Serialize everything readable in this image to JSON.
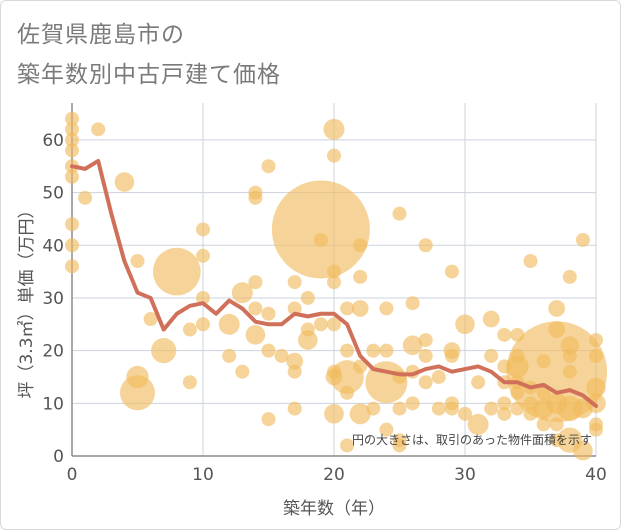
{
  "title_lines": [
    "佐賀県鹿島市の",
    "築年数別中古戸建て価格"
  ],
  "chart_data": {
    "type": "scatter",
    "xlabel": "築年数（年）",
    "ylabel": "坪（3.3㎡）単価（万円）",
    "xlim": [
      0,
      40
    ],
    "ylim": [
      0,
      67
    ],
    "xticks": [
      0,
      10,
      20,
      30,
      40
    ],
    "yticks": [
      0,
      10,
      20,
      30,
      40,
      50,
      60
    ],
    "grid": true,
    "note": "円の大きさは、取引のあった物件面積を示す",
    "bubble_color": "#f0b95a",
    "line_color": "#d0705a",
    "points": [
      {
        "x": 0,
        "y": 64,
        "s": 1
      },
      {
        "x": 0,
        "y": 62,
        "s": 1
      },
      {
        "x": 0,
        "y": 60,
        "s": 1
      },
      {
        "x": 0,
        "y": 58,
        "s": 1
      },
      {
        "x": 0,
        "y": 55,
        "s": 1
      },
      {
        "x": 0,
        "y": 53,
        "s": 1
      },
      {
        "x": 0,
        "y": 44,
        "s": 1
      },
      {
        "x": 0,
        "y": 40,
        "s": 1
      },
      {
        "x": 0,
        "y": 36,
        "s": 1
      },
      {
        "x": 1,
        "y": 49,
        "s": 1
      },
      {
        "x": 2,
        "y": 62,
        "s": 1
      },
      {
        "x": 4,
        "y": 52,
        "s": 1.4
      },
      {
        "x": 5,
        "y": 37,
        "s": 1
      },
      {
        "x": 5,
        "y": 15,
        "s": 1.6
      },
      {
        "x": 5,
        "y": 12,
        "s": 2.5
      },
      {
        "x": 6,
        "y": 26,
        "s": 1
      },
      {
        "x": 7,
        "y": 20,
        "s": 1.8
      },
      {
        "x": 8,
        "y": 35,
        "s": 3.4
      },
      {
        "x": 9,
        "y": 24,
        "s": 1
      },
      {
        "x": 9,
        "y": 14,
        "s": 1
      },
      {
        "x": 10,
        "y": 43,
        "s": 1
      },
      {
        "x": 10,
        "y": 38,
        "s": 1
      },
      {
        "x": 10,
        "y": 30,
        "s": 1
      },
      {
        "x": 10,
        "y": 25,
        "s": 1
      },
      {
        "x": 12,
        "y": 25,
        "s": 1.5
      },
      {
        "x": 12,
        "y": 19,
        "s": 1
      },
      {
        "x": 13,
        "y": 31,
        "s": 1.5
      },
      {
        "x": 13,
        "y": 16,
        "s": 1
      },
      {
        "x": 14,
        "y": 50,
        "s": 1
      },
      {
        "x": 14,
        "y": 49,
        "s": 1
      },
      {
        "x": 14,
        "y": 33,
        "s": 1
      },
      {
        "x": 14,
        "y": 28,
        "s": 1
      },
      {
        "x": 14,
        "y": 23,
        "s": 1.4
      },
      {
        "x": 15,
        "y": 55,
        "s": 1
      },
      {
        "x": 15,
        "y": 27,
        "s": 1
      },
      {
        "x": 15,
        "y": 20,
        "s": 1
      },
      {
        "x": 15,
        "y": 7,
        "s": 1
      },
      {
        "x": 16,
        "y": 19,
        "s": 1
      },
      {
        "x": 17,
        "y": 33,
        "s": 1
      },
      {
        "x": 17,
        "y": 28,
        "s": 1
      },
      {
        "x": 17,
        "y": 18,
        "s": 1.2
      },
      {
        "x": 17,
        "y": 16,
        "s": 1
      },
      {
        "x": 17,
        "y": 9,
        "s": 1
      },
      {
        "x": 18,
        "y": 30,
        "s": 1
      },
      {
        "x": 18,
        "y": 24,
        "s": 1
      },
      {
        "x": 18,
        "y": 22,
        "s": 1.4
      },
      {
        "x": 19,
        "y": 43,
        "s": 7
      },
      {
        "x": 19,
        "y": 41,
        "s": 1
      },
      {
        "x": 19,
        "y": 25,
        "s": 1
      },
      {
        "x": 20,
        "y": 62,
        "s": 1.5
      },
      {
        "x": 20,
        "y": 57,
        "s": 1
      },
      {
        "x": 20,
        "y": 35,
        "s": 1
      },
      {
        "x": 20,
        "y": 33,
        "s": 1
      },
      {
        "x": 20,
        "y": 25,
        "s": 1
      },
      {
        "x": 20,
        "y": 16,
        "s": 1
      },
      {
        "x": 20,
        "y": 15,
        "s": 1.2
      },
      {
        "x": 20,
        "y": 8,
        "s": 1.4
      },
      {
        "x": 21,
        "y": 28,
        "s": 1
      },
      {
        "x": 21,
        "y": 20,
        "s": 1
      },
      {
        "x": 21,
        "y": 15,
        "s": 2.4
      },
      {
        "x": 21,
        "y": 12,
        "s": 1
      },
      {
        "x": 21,
        "y": 2,
        "s": 1
      },
      {
        "x": 22,
        "y": 40,
        "s": 1
      },
      {
        "x": 22,
        "y": 34,
        "s": 1
      },
      {
        "x": 22,
        "y": 28,
        "s": 1.2
      },
      {
        "x": 22,
        "y": 17,
        "s": 1
      },
      {
        "x": 22,
        "y": 8,
        "s": 1.5
      },
      {
        "x": 23,
        "y": 20,
        "s": 1
      },
      {
        "x": 23,
        "y": 9,
        "s": 1
      },
      {
        "x": 24,
        "y": 28,
        "s": 1
      },
      {
        "x": 24,
        "y": 20,
        "s": 1
      },
      {
        "x": 24,
        "y": 14,
        "s": 3
      },
      {
        "x": 24,
        "y": 5,
        "s": 1
      },
      {
        "x": 25,
        "y": 46,
        "s": 1
      },
      {
        "x": 25,
        "y": 15,
        "s": 1
      },
      {
        "x": 25,
        "y": 9,
        "s": 1
      },
      {
        "x": 25,
        "y": 3,
        "s": 1
      },
      {
        "x": 25,
        "y": 2,
        "s": 1
      },
      {
        "x": 26,
        "y": 29,
        "s": 1
      },
      {
        "x": 26,
        "y": 21,
        "s": 1.4
      },
      {
        "x": 26,
        "y": 16,
        "s": 1
      },
      {
        "x": 26,
        "y": 10,
        "s": 1
      },
      {
        "x": 27,
        "y": 40,
        "s": 1
      },
      {
        "x": 27,
        "y": 22,
        "s": 1
      },
      {
        "x": 27,
        "y": 19,
        "s": 1
      },
      {
        "x": 27,
        "y": 14,
        "s": 1
      },
      {
        "x": 28,
        "y": 15,
        "s": 1
      },
      {
        "x": 28,
        "y": 9,
        "s": 1
      },
      {
        "x": 29,
        "y": 35,
        "s": 1
      },
      {
        "x": 29,
        "y": 20,
        "s": 1.2
      },
      {
        "x": 29,
        "y": 19,
        "s": 1
      },
      {
        "x": 29,
        "y": 10,
        "s": 1
      },
      {
        "x": 29,
        "y": 9,
        "s": 1
      },
      {
        "x": 30,
        "y": 25,
        "s": 1.4
      },
      {
        "x": 30,
        "y": 8,
        "s": 1
      },
      {
        "x": 31,
        "y": 14,
        "s": 1
      },
      {
        "x": 31,
        "y": 6,
        "s": 1.5
      },
      {
        "x": 32,
        "y": 26,
        "s": 1.2
      },
      {
        "x": 32,
        "y": 19,
        "s": 1
      },
      {
        "x": 32,
        "y": 9,
        "s": 1
      },
      {
        "x": 33,
        "y": 23,
        "s": 1
      },
      {
        "x": 33,
        "y": 17,
        "s": 1
      },
      {
        "x": 33,
        "y": 14,
        "s": 1
      },
      {
        "x": 33,
        "y": 10,
        "s": 1
      },
      {
        "x": 33,
        "y": 8,
        "s": 1
      },
      {
        "x": 34,
        "y": 23,
        "s": 1
      },
      {
        "x": 34,
        "y": 19,
        "s": 1
      },
      {
        "x": 34,
        "y": 17,
        "s": 1.6
      },
      {
        "x": 34,
        "y": 14,
        "s": 1
      },
      {
        "x": 34,
        "y": 12,
        "s": 1
      },
      {
        "x": 34,
        "y": 9,
        "s": 1
      },
      {
        "x": 35,
        "y": 37,
        "s": 1
      },
      {
        "x": 35,
        "y": 13,
        "s": 1
      },
      {
        "x": 35,
        "y": 10,
        "s": 1
      },
      {
        "x": 35,
        "y": 8,
        "s": 1
      },
      {
        "x": 36,
        "y": 18,
        "s": 1
      },
      {
        "x": 36,
        "y": 12,
        "s": 1
      },
      {
        "x": 36,
        "y": 9,
        "s": 1.4
      },
      {
        "x": 36,
        "y": 6,
        "s": 1
      },
      {
        "x": 37,
        "y": 28,
        "s": 1.2
      },
      {
        "x": 37,
        "y": 24,
        "s": 1.2
      },
      {
        "x": 37,
        "y": 16,
        "s": 7.2
      },
      {
        "x": 37,
        "y": 10,
        "s": 1.5
      },
      {
        "x": 37,
        "y": 6,
        "s": 1
      },
      {
        "x": 37,
        "y": 3,
        "s": 1
      },
      {
        "x": 38,
        "y": 34,
        "s": 1
      },
      {
        "x": 38,
        "y": 21,
        "s": 1.3
      },
      {
        "x": 38,
        "y": 19,
        "s": 1
      },
      {
        "x": 38,
        "y": 16,
        "s": 1
      },
      {
        "x": 38,
        "y": 9,
        "s": 1.8
      },
      {
        "x": 38,
        "y": 3,
        "s": 1.8
      },
      {
        "x": 39,
        "y": 41,
        "s": 1
      },
      {
        "x": 39,
        "y": 9,
        "s": 1.4
      },
      {
        "x": 39,
        "y": 1,
        "s": 1.4
      },
      {
        "x": 40,
        "y": 22,
        "s": 1
      },
      {
        "x": 40,
        "y": 19,
        "s": 1
      },
      {
        "x": 40,
        "y": 13,
        "s": 1.4
      },
      {
        "x": 40,
        "y": 10,
        "s": 1.4
      },
      {
        "x": 40,
        "y": 6,
        "s": 1
      },
      {
        "x": 40,
        "y": 5,
        "s": 1
      }
    ],
    "trend": [
      [
        0,
        55
      ],
      [
        1,
        54.5
      ],
      [
        2,
        56
      ],
      [
        3,
        46
      ],
      [
        4,
        37
      ],
      [
        5,
        31
      ],
      [
        6,
        30
      ],
      [
        7,
        24
      ],
      [
        8,
        27
      ],
      [
        9,
        28.5
      ],
      [
        10,
        29
      ],
      [
        11,
        27
      ],
      [
        12,
        29.5
      ],
      [
        13,
        28
      ],
      [
        14,
        25.5
      ],
      [
        15,
        25
      ],
      [
        16,
        25
      ],
      [
        17,
        27
      ],
      [
        18,
        26.5
      ],
      [
        19,
        27
      ],
      [
        20,
        27
      ],
      [
        21,
        25
      ],
      [
        22,
        19
      ],
      [
        23,
        16.5
      ],
      [
        24,
        16
      ],
      [
        25,
        15.5
      ],
      [
        26,
        15.5
      ],
      [
        27,
        16.5
      ],
      [
        28,
        17
      ],
      [
        29,
        16
      ],
      [
        30,
        16.5
      ],
      [
        31,
        17
      ],
      [
        32,
        16
      ],
      [
        33,
        14
      ],
      [
        34,
        14
      ],
      [
        35,
        13
      ],
      [
        36,
        13.5
      ],
      [
        37,
        12
      ],
      [
        38,
        12.5
      ],
      [
        39,
        11.5
      ],
      [
        40,
        9.5
      ]
    ]
  }
}
